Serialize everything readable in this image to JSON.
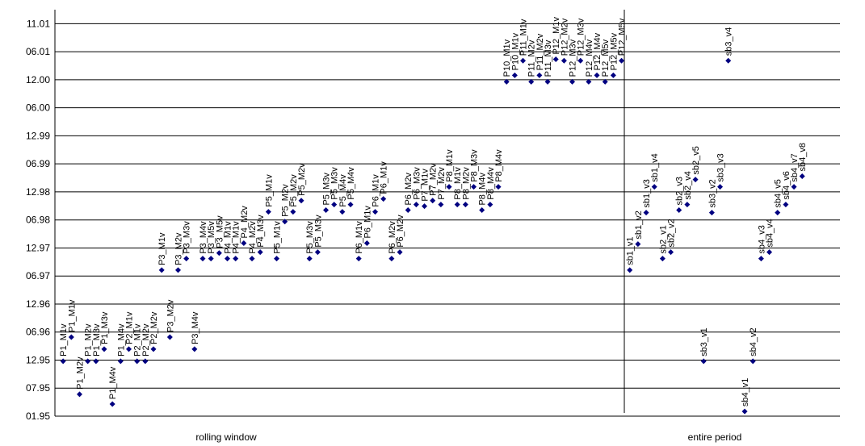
{
  "chart_data": {
    "type": "scatter",
    "x_group_labels": [
      "rolling window",
      "entire period"
    ],
    "xlim": [
      0,
      95.6
    ],
    "ylim": [
      0,
      14.5
    ],
    "yticks": [
      {
        "value": 0,
        "label": "01.95"
      },
      {
        "value": 1,
        "label": "07.95"
      },
      {
        "value": 2,
        "label": "12.95"
      },
      {
        "value": 3,
        "label": "06.96"
      },
      {
        "value": 4,
        "label": "12.96"
      },
      {
        "value": 5,
        "label": "06.97"
      },
      {
        "value": 6,
        "label": "12.97"
      },
      {
        "value": 7,
        "label": "06.98"
      },
      {
        "value": 8,
        "label": "12.98"
      },
      {
        "value": 9,
        "label": "06.99"
      },
      {
        "value": 10,
        "label": "12.99"
      },
      {
        "value": 11,
        "label": "06.00"
      },
      {
        "value": 12,
        "label": "12.00"
      },
      {
        "value": 13,
        "label": "06.01"
      },
      {
        "value": 14,
        "label": "11.01"
      }
    ],
    "grid": true,
    "series": [
      {
        "color": "#000080",
        "x": [
          1,
          2,
          3,
          4,
          5,
          6,
          7,
          8,
          9,
          10,
          11,
          12,
          13,
          14,
          15,
          16,
          17,
          18,
          19,
          20,
          21,
          22,
          23,
          24,
          25,
          26,
          27,
          28,
          29,
          30,
          31,
          32,
          33,
          34,
          35,
          36,
          37,
          38,
          39,
          40,
          41,
          42,
          43,
          44,
          45,
          46,
          47,
          48,
          49,
          50,
          51,
          52,
          53,
          54,
          55,
          56,
          57,
          58,
          59,
          60,
          61,
          62,
          63,
          64,
          65,
          66,
          67,
          68,
          69,
          70,
          71,
          72,
          73,
          74,
          75,
          76,
          77,
          78,
          79,
          80,
          81,
          82,
          84,
          85,
          86,
          87,
          88,
          89,
          90,
          91
        ],
        "values": [
          1.96,
          2.82,
          0.78,
          1.96,
          1.96,
          2.39,
          0.43,
          1.96,
          2.39,
          1.96,
          1.96,
          2.39,
          5.21,
          2.82,
          5.21,
          5.62,
          2.39,
          5.62,
          5.62,
          5.82,
          5.62,
          5.62,
          6.17,
          5.62,
          5.85,
          7.29,
          5.62,
          6.94,
          7.29,
          7.69,
          5.62,
          5.85,
          7.35,
          7.55,
          7.29,
          7.55,
          5.62,
          6.17,
          7.29,
          7.75,
          5.62,
          5.85,
          7.35,
          7.55,
          7.49,
          7.69,
          7.55,
          8.18,
          7.55,
          7.55,
          8.18,
          7.35,
          7.55,
          8.18,
          11.93,
          12.16,
          12.68,
          11.93,
          12.16,
          11.93,
          12.73,
          12.68,
          11.93,
          12.68,
          11.93,
          12.16,
          11.93,
          12.16,
          12.68,
          5.21,
          6.14,
          7.26,
          8.18,
          5.62,
          5.85,
          7.35,
          7.55,
          8.44,
          1.96,
          7.26,
          8.18,
          12.68,
          0.17,
          1.96,
          5.62,
          5.85,
          7.26,
          7.55,
          8.18,
          8.56
        ],
        "point_labels": [
          "P1_M1v",
          "P1_M1v",
          "P1_M2v",
          "P1_M2v",
          "P1_M3v",
          "P1_M3v",
          "P1_M4v",
          "P1_M4v",
          "P2_M1v",
          "P2_M1v",
          "P2_M2v",
          "P2_M2v",
          "P3_M1v",
          "P3_M2v",
          "P3_M2v",
          "P3_M3v",
          "P3_M4v",
          "P3_M4v",
          "P3_M5v",
          "P3_M5v",
          "P4_M1v",
          "P4_M1v",
          "P4_M2v",
          "P4_M2v",
          "P4_M3v",
          "P5_M1v",
          "P5_M1v",
          "P5_M2v",
          "P5_M2v",
          "P5_M2v",
          "P5_M3v",
          "P5_M3v",
          "P5_M3v",
          "P5_M3v",
          "P5_M4v",
          "P5_M4v",
          "P6_M1v",
          "P6_M1v",
          "P6_M1v",
          "P6_M1v",
          "P6_M2v",
          "P6_M2v",
          "P6_M2v",
          "P6_M3v",
          "P7_M1v",
          "P7_M2v",
          "P7_M2v",
          "P8_M1v",
          "P8_M1v",
          "P8_M2v",
          "P8_M3v",
          "P8_M4v",
          "P8_M4v",
          "P8_M4v",
          "P10_M1v",
          "P10_M1v",
          "P11_M1v",
          "P11_M2v",
          "P11_M2v",
          "P11_M3v",
          "P12_M1v",
          "P12_M2v",
          "P12_M3v",
          "P12_M3v",
          "P12_M4v",
          "P12_M4v",
          "P12_M5v",
          "P12_M5v",
          "P12_M5v",
          "sb1_v1",
          "sb1_v2",
          "sb1_v3",
          "sb1_v4",
          "sb2_v1",
          "sb2_v2",
          "sb2_v3",
          "sb2_v4",
          "sb2_v5",
          "sb3_v1",
          "sb3_v2",
          "sb3_v3",
          "sb3_v4",
          "sb4_v1",
          "sb4_v2",
          "sb4_v3",
          "sb4_v4",
          "sb4_v5",
          "sb4_v6",
          "sb4_v7",
          "sb4_v8"
        ]
      }
    ]
  }
}
